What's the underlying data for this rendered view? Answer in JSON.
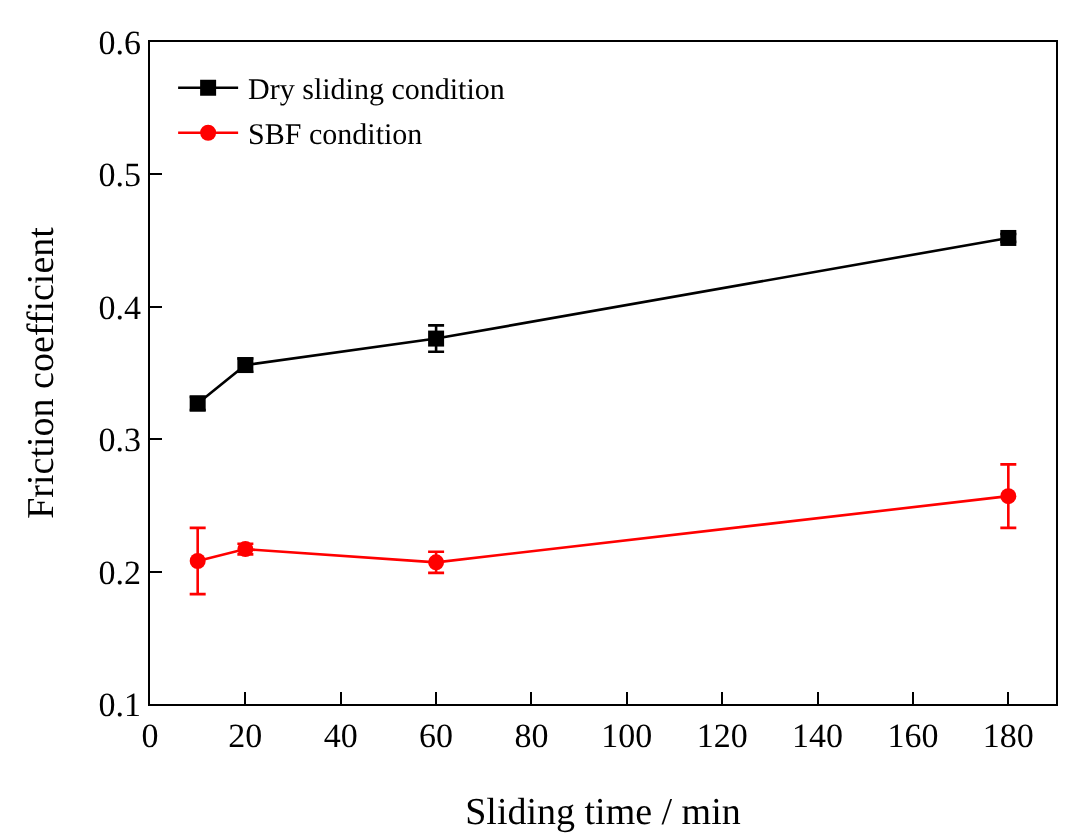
{
  "chart_data": {
    "type": "line",
    "xlabel": "Sliding time / min",
    "ylabel": "Friction coefficient",
    "x": [
      10,
      20,
      60,
      180
    ],
    "series": [
      {
        "name": "Dry sliding condition",
        "color": "#000000",
        "marker": "square",
        "values": [
          0.327,
          0.356,
          0.376,
          0.452
        ],
        "errors": [
          0.005,
          0.005,
          0.01,
          0.003
        ]
      },
      {
        "name": "SBF condition",
        "color": "#ff0000",
        "marker": "circle",
        "values": [
          0.208,
          0.217,
          0.207,
          0.257
        ],
        "errors": [
          0.025,
          0.004,
          0.008,
          0.024
        ]
      }
    ],
    "xlim": [
      0,
      190
    ],
    "xticks": [
      0,
      20,
      40,
      60,
      80,
      100,
      120,
      140,
      160,
      180
    ],
    "ylim": [
      0.1,
      0.6
    ],
    "yticks": [
      0.1,
      0.2,
      0.3,
      0.4,
      0.5,
      0.6
    ],
    "grid": false,
    "legend": "top left",
    "line_style": "solid"
  }
}
